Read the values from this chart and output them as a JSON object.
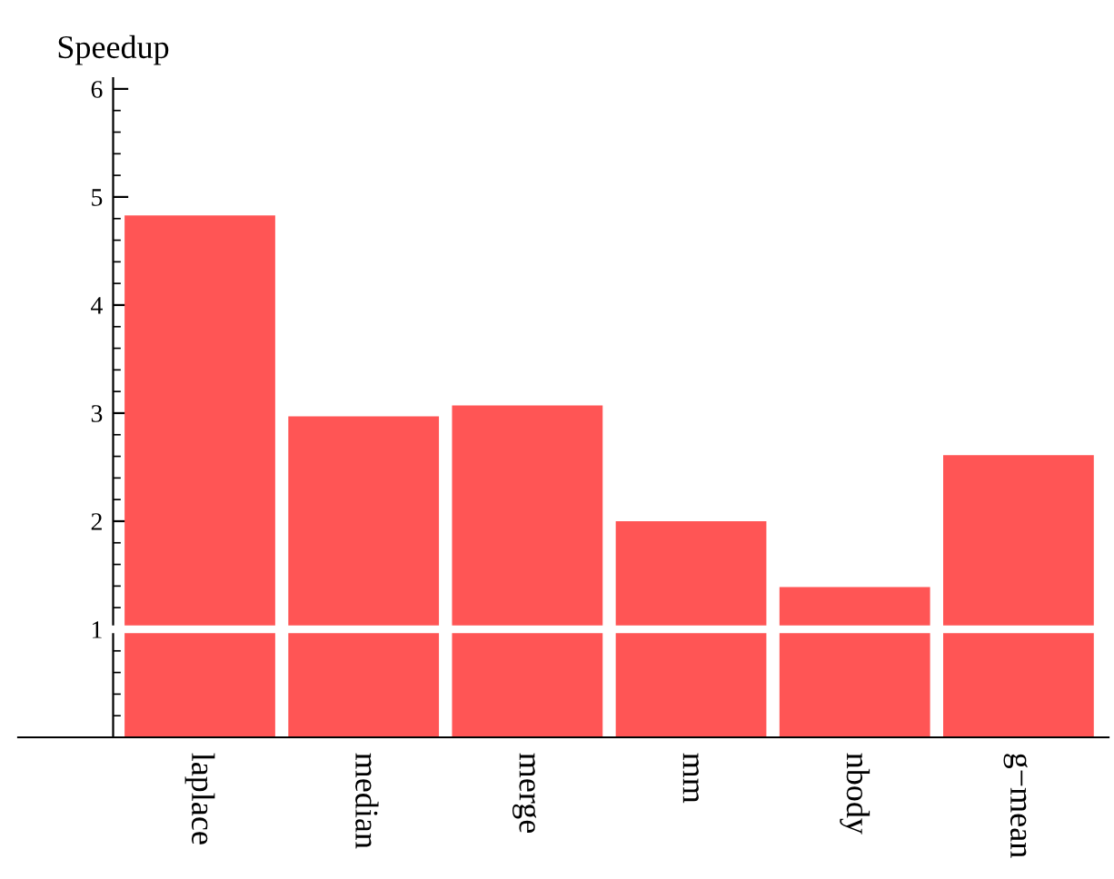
{
  "chart_data": {
    "type": "bar",
    "ylabel": "Speedup",
    "categories": [
      "laplace",
      "median",
      "merge",
      "mm",
      "nbody",
      "g−mean"
    ],
    "values": [
      4.83,
      2.97,
      3.07,
      2.0,
      1.39,
      2.61
    ],
    "color": "#ff5555",
    "ylim": [
      0,
      6.1
    ],
    "yticks": [
      1,
      2,
      3,
      4,
      5,
      6
    ],
    "ref_lines": [
      {
        "axis": "y",
        "value": 1,
        "color": "#ffffff"
      }
    ],
    "grid": false,
    "legend": false
  }
}
